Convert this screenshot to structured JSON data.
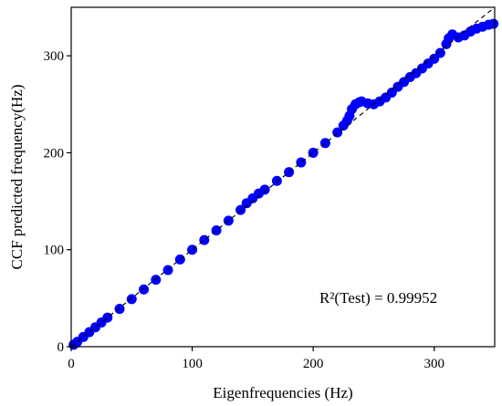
{
  "chart_data": {
    "type": "scatter",
    "title": "",
    "xlabel": "Eigenfrequencies (Hz)",
    "ylabel": "CCF predicted frequency(Hz)",
    "xlim": [
      0,
      350
    ],
    "ylim": [
      0,
      350
    ],
    "xticks": [
      0,
      100,
      200,
      300
    ],
    "yticks": [
      0,
      100,
      200,
      300
    ],
    "grid": false,
    "annotation": "R²(Test) = 0.99952",
    "reference_line": {
      "style": "dashed",
      "color": "#000000",
      "from": [
        0,
        0
      ],
      "to": [
        350,
        350
      ]
    },
    "series": [
      {
        "color": "#0000ff",
        "x": [
          2,
          5,
          10,
          15,
          20,
          25,
          30,
          40,
          50,
          60,
          70,
          80,
          90,
          100,
          110,
          120,
          130,
          140,
          145,
          150,
          155,
          160,
          170,
          180,
          190,
          200,
          210,
          220,
          225,
          228,
          230,
          232,
          235,
          238,
          240,
          245,
          250,
          255,
          260,
          265,
          270,
          275,
          280,
          285,
          290,
          295,
          300,
          305,
          310,
          312,
          315,
          320,
          325,
          330,
          335,
          340,
          345,
          349
        ],
        "y": [
          2,
          5,
          10,
          15,
          20,
          25,
          30,
          39,
          49,
          59,
          69,
          79,
          90,
          100,
          110,
          120,
          130,
          141,
          148,
          153,
          158,
          162,
          171,
          180,
          190,
          200,
          210,
          221,
          228,
          233,
          238,
          245,
          250,
          252,
          253,
          251,
          250,
          253,
          257,
          262,
          268,
          273,
          278,
          282,
          287,
          292,
          297,
          303,
          312,
          318,
          322,
          319,
          321,
          325,
          328,
          330,
          332,
          333
        ]
      }
    ]
  }
}
